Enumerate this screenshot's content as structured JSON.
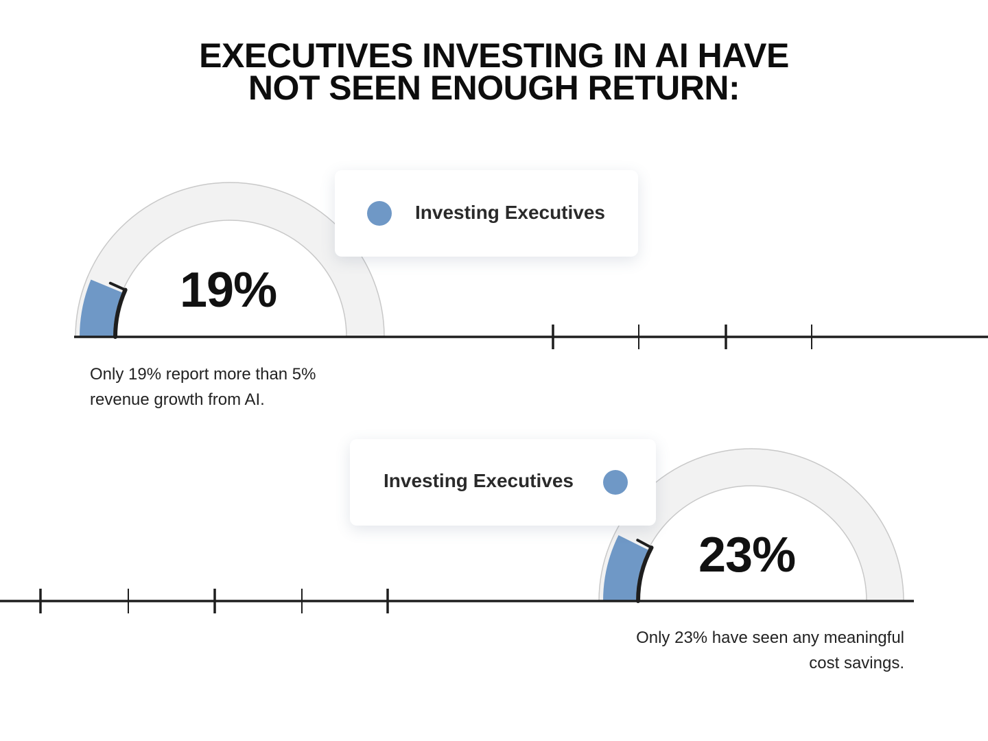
{
  "title": {
    "line1": "EXECUTIVES INVESTING IN AI HAVE",
    "line2": "NOT SEEN ENOUGH RETURN:"
  },
  "colors": {
    "accent": "#6f98c6",
    "track": "#f2f2f2",
    "track_border": "#c8c8c8",
    "line": "#1e1e1e"
  },
  "chart_data": [
    {
      "type": "gauge",
      "value": 19,
      "max": 100,
      "value_label": "19%",
      "legend": "Investing Executives",
      "caption_lines": [
        "Only 19% report more than 5%",
        "revenue growth from AI."
      ]
    },
    {
      "type": "gauge",
      "value": 23,
      "max": 100,
      "value_label": "23%",
      "legend": "Investing Executives",
      "caption_lines": [
        "Only 23% have seen any meaningful",
        "cost savings."
      ]
    }
  ]
}
